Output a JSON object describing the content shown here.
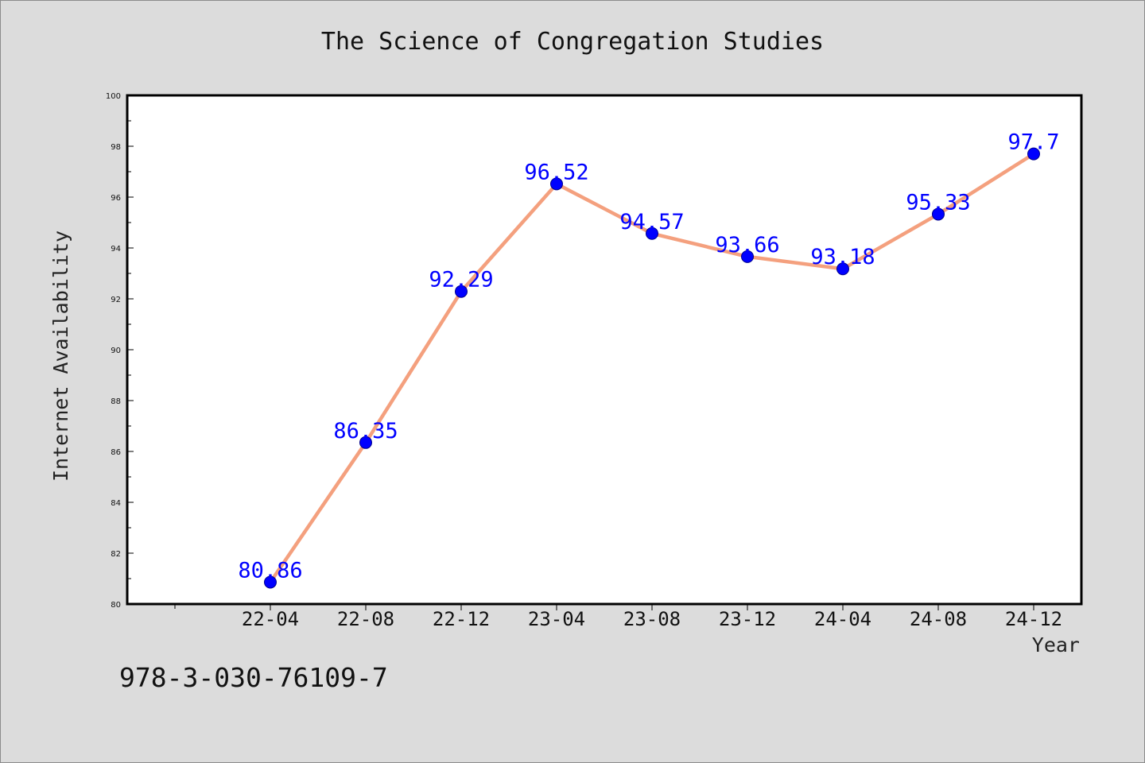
{
  "chart_data": {
    "type": "line",
    "title": "The Science of Congregation Studies",
    "xlabel": "Year",
    "ylabel": "Internet Availability",
    "categories": [
      "22-04",
      "22-08",
      "22-12",
      "23-04",
      "23-08",
      "23-12",
      "24-04",
      "24-08",
      "24-12"
    ],
    "series": [
      {
        "values": [
          80.86,
          86.35,
          92.29,
          96.52,
          94.57,
          93.66,
          93.18,
          95.33,
          97.7
        ]
      }
    ],
    "data_labels": [
      "80.86",
      "86.35",
      "92.29",
      "96.52",
      "94.57",
      "93.66",
      "93.18",
      "95.33",
      "97.7"
    ],
    "ylim": [
      80,
      100
    ],
    "yticks": [
      80,
      82,
      84,
      86,
      88,
      90,
      92,
      94,
      96,
      98,
      100
    ],
    "grid": false,
    "line_color": "#f4a07e",
    "marker_color": "#0000ff",
    "label_color": "#0000ff"
  },
  "footer": {
    "isbn": "978-3-030-76109-7"
  }
}
